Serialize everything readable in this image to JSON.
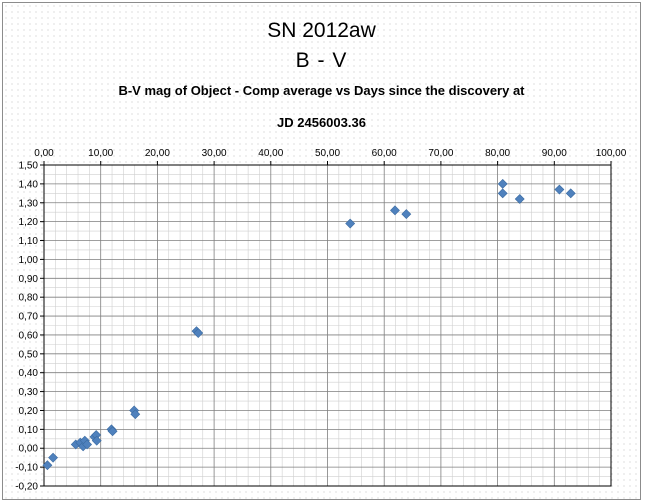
{
  "chart_data": {
    "type": "scatter",
    "title_lines": [
      "SN 2012aw",
      "B - V",
      "B-V mag of Object - Comp average  vs  Days since the discovery at",
      "JD 2456003.36"
    ],
    "xlabel": "",
    "ylabel": "",
    "xlim": [
      0,
      100
    ],
    "ylim": [
      -0.2,
      1.5
    ],
    "x_axis_position": "top",
    "grid": true,
    "x_ticks": [
      "0,00",
      "10,00",
      "20,00",
      "30,00",
      "40,00",
      "50,00",
      "60,00",
      "70,00",
      "80,00",
      "90,00",
      "100,00"
    ],
    "y_ticks": [
      "1,50",
      "1,40",
      "1,30",
      "1,20",
      "1,10",
      "1,00",
      "0,90",
      "0,80",
      "0,70",
      "0,60",
      "0,50",
      "0,40",
      "0,30",
      "0,20",
      "0,10",
      "0,00",
      "-0,10",
      "-0,20"
    ],
    "marker": "diamond",
    "marker_color": "#4f81bd",
    "points": [
      {
        "x": 0.6,
        "y": -0.09
      },
      {
        "x": 1.6,
        "y": -0.05
      },
      {
        "x": 5.6,
        "y": 0.02
      },
      {
        "x": 6.4,
        "y": 0.03
      },
      {
        "x": 6.9,
        "y": 0.01
      },
      {
        "x": 7.2,
        "y": 0.04
      },
      {
        "x": 7.6,
        "y": 0.02
      },
      {
        "x": 8.9,
        "y": 0.06
      },
      {
        "x": 9.2,
        "y": 0.07
      },
      {
        "x": 9.3,
        "y": 0.04
      },
      {
        "x": 11.9,
        "y": 0.1
      },
      {
        "x": 12.1,
        "y": 0.09
      },
      {
        "x": 15.9,
        "y": 0.2
      },
      {
        "x": 16.1,
        "y": 0.18
      },
      {
        "x": 26.9,
        "y": 0.62
      },
      {
        "x": 27.2,
        "y": 0.61
      },
      {
        "x": 54.0,
        "y": 1.19
      },
      {
        "x": 61.9,
        "y": 1.26
      },
      {
        "x": 63.9,
        "y": 1.24
      },
      {
        "x": 80.9,
        "y": 1.4
      },
      {
        "x": 80.9,
        "y": 1.35
      },
      {
        "x": 83.9,
        "y": 1.32
      },
      {
        "x": 90.9,
        "y": 1.37
      },
      {
        "x": 92.9,
        "y": 1.35
      }
    ]
  }
}
